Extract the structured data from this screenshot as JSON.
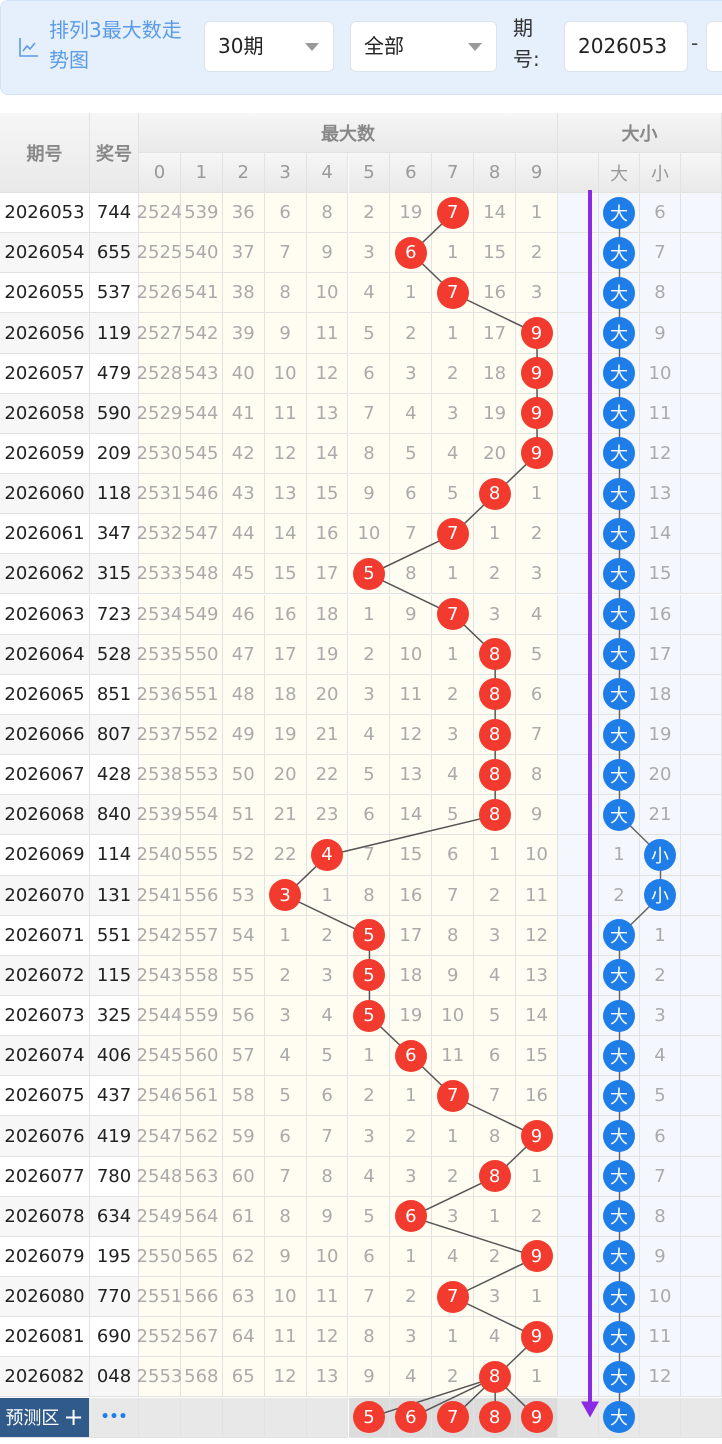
{
  "header": {
    "title": "排列3最大数走势图",
    "icon": "line-chart-icon",
    "range_select": "30期",
    "type_select": "全部",
    "period_label": "期号:",
    "period_start": "2026053",
    "separator": "-"
  },
  "table": {
    "col_period": "期号",
    "col_prize": "奖号",
    "group_max": "最大数",
    "group_size": "大小",
    "digits": [
      "0",
      "1",
      "2",
      "3",
      "4",
      "5",
      "6",
      "7",
      "8",
      "9"
    ],
    "size_cols": [
      "大",
      "小"
    ],
    "rows": [
      {
        "period": "2026053",
        "prize": "744",
        "miss": [
          2524,
          539,
          36,
          6,
          8,
          2,
          19,
          7,
          14,
          1
        ],
        "hit": 7,
        "big": "大",
        "small": "6",
        "size": "big"
      },
      {
        "period": "2026054",
        "prize": "655",
        "miss": [
          2525,
          540,
          37,
          7,
          9,
          3,
          6,
          1,
          15,
          2
        ],
        "hit": 6,
        "big": "大",
        "small": "7",
        "size": "big"
      },
      {
        "period": "2026055",
        "prize": "537",
        "miss": [
          2526,
          541,
          38,
          8,
          10,
          4,
          1,
          7,
          16,
          3
        ],
        "hit": 7,
        "big": "大",
        "small": "8",
        "size": "big"
      },
      {
        "period": "2026056",
        "prize": "119",
        "miss": [
          2527,
          542,
          39,
          9,
          11,
          5,
          2,
          1,
          17,
          9
        ],
        "hit": 9,
        "big": "大",
        "small": "9",
        "size": "big"
      },
      {
        "period": "2026057",
        "prize": "479",
        "miss": [
          2528,
          543,
          40,
          10,
          12,
          6,
          3,
          2,
          18,
          9
        ],
        "hit": 9,
        "big": "大",
        "small": "10",
        "size": "big"
      },
      {
        "period": "2026058",
        "prize": "590",
        "miss": [
          2529,
          544,
          41,
          11,
          13,
          7,
          4,
          3,
          19,
          9
        ],
        "hit": 9,
        "big": "大",
        "small": "11",
        "size": "big"
      },
      {
        "period": "2026059",
        "prize": "209",
        "miss": [
          2530,
          545,
          42,
          12,
          14,
          8,
          5,
          4,
          20,
          9
        ],
        "hit": 9,
        "big": "大",
        "small": "12",
        "size": "big"
      },
      {
        "period": "2026060",
        "prize": "118",
        "miss": [
          2531,
          546,
          43,
          13,
          15,
          9,
          6,
          5,
          8,
          1
        ],
        "hit": 8,
        "big": "大",
        "small": "13",
        "size": "big"
      },
      {
        "period": "2026061",
        "prize": "347",
        "miss": [
          2532,
          547,
          44,
          14,
          16,
          10,
          7,
          7,
          1,
          2
        ],
        "hit": 7,
        "big": "大",
        "small": "14",
        "size": "big"
      },
      {
        "period": "2026062",
        "prize": "315",
        "miss": [
          2533,
          548,
          45,
          15,
          17,
          5,
          8,
          1,
          2,
          3
        ],
        "hit": 5,
        "big": "大",
        "small": "15",
        "size": "big"
      },
      {
        "period": "2026063",
        "prize": "723",
        "miss": [
          2534,
          549,
          46,
          16,
          18,
          1,
          9,
          7,
          3,
          4
        ],
        "hit": 7,
        "big": "大",
        "small": "16",
        "size": "big"
      },
      {
        "period": "2026064",
        "prize": "528",
        "miss": [
          2535,
          550,
          47,
          17,
          19,
          2,
          10,
          1,
          8,
          5
        ],
        "hit": 8,
        "big": "大",
        "small": "17",
        "size": "big"
      },
      {
        "period": "2026065",
        "prize": "851",
        "miss": [
          2536,
          551,
          48,
          18,
          20,
          3,
          11,
          2,
          8,
          6
        ],
        "hit": 8,
        "big": "大",
        "small": "18",
        "size": "big"
      },
      {
        "period": "2026066",
        "prize": "807",
        "miss": [
          2537,
          552,
          49,
          19,
          21,
          4,
          12,
          3,
          8,
          7
        ],
        "hit": 8,
        "big": "大",
        "small": "19",
        "size": "big"
      },
      {
        "period": "2026067",
        "prize": "428",
        "miss": [
          2538,
          553,
          50,
          20,
          22,
          5,
          13,
          4,
          8,
          8
        ],
        "hit": 8,
        "big": "大",
        "small": "20",
        "size": "big"
      },
      {
        "period": "2026068",
        "prize": "840",
        "miss": [
          2539,
          554,
          51,
          21,
          23,
          6,
          14,
          5,
          8,
          9
        ],
        "hit": 8,
        "big": "大",
        "small": "21",
        "size": "big"
      },
      {
        "period": "2026069",
        "prize": "114",
        "miss": [
          2540,
          555,
          52,
          22,
          4,
          7,
          15,
          6,
          1,
          10
        ],
        "hit": 4,
        "big": "1",
        "small": "小",
        "size": "small"
      },
      {
        "period": "2026070",
        "prize": "131",
        "miss": [
          2541,
          556,
          53,
          3,
          1,
          8,
          16,
          7,
          2,
          11
        ],
        "hit": 3,
        "big": "2",
        "small": "小",
        "size": "small"
      },
      {
        "period": "2026071",
        "prize": "551",
        "miss": [
          2542,
          557,
          54,
          1,
          2,
          5,
          17,
          8,
          3,
          12
        ],
        "hit": 5,
        "big": "大",
        "small": "1",
        "size": "big"
      },
      {
        "period": "2026072",
        "prize": "115",
        "miss": [
          2543,
          558,
          55,
          2,
          3,
          5,
          18,
          9,
          4,
          13
        ],
        "hit": 5,
        "big": "大",
        "small": "2",
        "size": "big"
      },
      {
        "period": "2026073",
        "prize": "325",
        "miss": [
          2544,
          559,
          56,
          3,
          4,
          5,
          19,
          10,
          5,
          14
        ],
        "hit": 5,
        "big": "大",
        "small": "3",
        "size": "big"
      },
      {
        "period": "2026074",
        "prize": "406",
        "miss": [
          2545,
          560,
          57,
          4,
          5,
          1,
          6,
          11,
          6,
          15
        ],
        "hit": 6,
        "big": "大",
        "small": "4",
        "size": "big"
      },
      {
        "period": "2026075",
        "prize": "437",
        "miss": [
          2546,
          561,
          58,
          5,
          6,
          2,
          1,
          7,
          7,
          16
        ],
        "hit": 7,
        "big": "大",
        "small": "5",
        "size": "big"
      },
      {
        "period": "2026076",
        "prize": "419",
        "miss": [
          2547,
          562,
          59,
          6,
          7,
          3,
          2,
          1,
          8,
          9
        ],
        "hit": 9,
        "big": "大",
        "small": "6",
        "size": "big"
      },
      {
        "period": "2026077",
        "prize": "780",
        "miss": [
          2548,
          563,
          60,
          7,
          8,
          4,
          3,
          2,
          8,
          1
        ],
        "hit": 8,
        "big": "大",
        "small": "7",
        "size": "big"
      },
      {
        "period": "2026078",
        "prize": "634",
        "miss": [
          2549,
          564,
          61,
          8,
          9,
          5,
          6,
          3,
          1,
          2
        ],
        "hit": 6,
        "big": "大",
        "small": "8",
        "size": "big"
      },
      {
        "period": "2026079",
        "prize": "195",
        "miss": [
          2550,
          565,
          62,
          9,
          10,
          6,
          1,
          4,
          2,
          9
        ],
        "hit": 9,
        "big": "大",
        "small": "9",
        "size": "big"
      },
      {
        "period": "2026080",
        "prize": "770",
        "miss": [
          2551,
          566,
          63,
          10,
          11,
          7,
          2,
          7,
          3,
          1
        ],
        "hit": 7,
        "big": "大",
        "small": "10",
        "size": "big"
      },
      {
        "period": "2026081",
        "prize": "690",
        "miss": [
          2552,
          567,
          64,
          11,
          12,
          8,
          3,
          1,
          4,
          9
        ],
        "hit": 9,
        "big": "大",
        "small": "11",
        "size": "big"
      },
      {
        "period": "2026082",
        "prize": "048",
        "miss": [
          2553,
          568,
          65,
          12,
          13,
          9,
          4,
          2,
          8,
          1
        ],
        "hit": 8,
        "big": "大",
        "small": "12",
        "size": "big"
      }
    ],
    "predict": {
      "label": "预测区",
      "plus": "+",
      "more": "•••",
      "balls": [
        "5",
        "6",
        "7",
        "8",
        "9"
      ],
      "size": "大"
    }
  },
  "colors": {
    "hit_ball": "#f23a2e",
    "size_ball": "#1f7de8",
    "arrow": "#8a2be2",
    "title": "#5a9ae6",
    "predict_label_bg": "#2f5a8a"
  }
}
